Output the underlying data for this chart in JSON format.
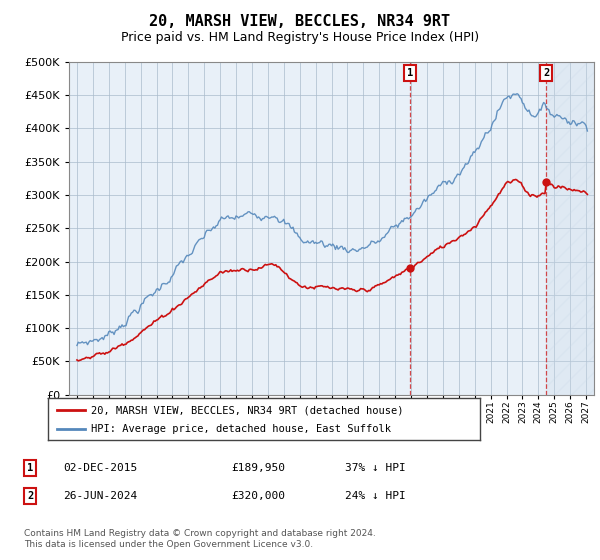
{
  "title": "20, MARSH VIEW, BECCLES, NR34 9RT",
  "subtitle": "Price paid vs. HM Land Registry's House Price Index (HPI)",
  "ytick_values": [
    0,
    50000,
    100000,
    150000,
    200000,
    250000,
    300000,
    350000,
    400000,
    450000,
    500000
  ],
  "ylim": [
    0,
    500000
  ],
  "xlim_start": 1994.5,
  "xlim_end": 2027.5,
  "hpi_color": "#5588bb",
  "price_color": "#cc1111",
  "chart_bg": "#e8f0f8",
  "marker1_year": 2015.92,
  "marker2_year": 2024.49,
  "marker1_price": 189950,
  "marker2_price": 320000,
  "legend_label1": "20, MARSH VIEW, BECCLES, NR34 9RT (detached house)",
  "legend_label2": "HPI: Average price, detached house, East Suffolk",
  "ann1_date": "02-DEC-2015",
  "ann1_price": "£189,950",
  "ann1_hpi": "37% ↓ HPI",
  "ann2_date": "26-JUN-2024",
  "ann2_price": "£320,000",
  "ann2_hpi": "24% ↓ HPI",
  "footer": "Contains HM Land Registry data © Crown copyright and database right 2024.\nThis data is licensed under the Open Government Licence v3.0.",
  "bg": "#ffffff",
  "grid_color": "#aabbcc",
  "title_fs": 11,
  "sub_fs": 9
}
